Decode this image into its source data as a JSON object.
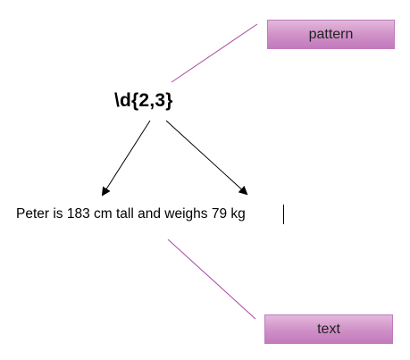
{
  "diagram": {
    "regex_pattern": "\\d{2,3}",
    "sample_text": "Peter is 183 cm tall and weighs 79 kg",
    "labels": {
      "pattern": "pattern",
      "text": "text"
    },
    "colors": {
      "label_fill_top": "#e3b8dc",
      "label_fill_bottom": "#c27bbd",
      "connector_line": "#a84aa3",
      "arrow": "#000000"
    }
  }
}
